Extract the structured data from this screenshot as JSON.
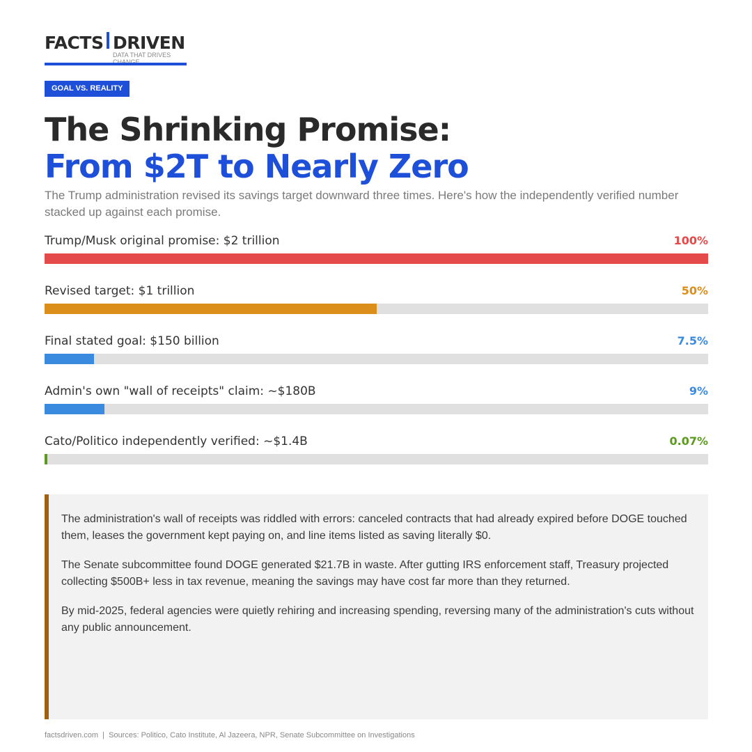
{
  "brand": {
    "word1": "FACTS",
    "word2": "DRIVEN",
    "tagline": "DATA THAT DRIVES CHANGE",
    "accent": "#1d4fd8"
  },
  "badge": "GOAL VS. REALITY",
  "title": {
    "line1": "The Shrinking Promise:",
    "line2": "From $2T to Nearly Zero"
  },
  "subtitle": "The Trump administration revised its savings target downward three times. Here's how the independently verified number stacked up against each promise.",
  "bars": [
    {
      "label": "Trump/Musk original promise: $2 trillion",
      "pct_text": "100%",
      "value": 100,
      "color": "#e44a4a"
    },
    {
      "label": "Revised target: $1 trillion",
      "pct_text": "50%",
      "value": 50,
      "color": "#dc8e1b"
    },
    {
      "label": "Final stated goal: $150 billion",
      "pct_text": "7.5%",
      "value": 7.5,
      "color": "#3a8ae0"
    },
    {
      "label": "Admin's own \"wall of receipts\" claim: ~$180B",
      "pct_text": "9%",
      "value": 9,
      "color": "#3a8ae0"
    },
    {
      "label": "Cato/Politico independently verified: ~$1.4B",
      "pct_text": "0.07%",
      "value": 0.07,
      "color": "#5a9a1e"
    }
  ],
  "callout": [
    "The administration's wall of receipts was riddled with errors: canceled contracts that had already expired before DOGE touched them, leases the government kept paying on, and line items listed as saving literally $0.",
    "The Senate subcommittee found DOGE generated $21.7B in waste. After gutting IRS enforcement staff, Treasury projected collecting $500B+ less in tax revenue, meaning the savings may have cost far more than they returned.",
    "By mid-2025, federal agencies were quietly rehiring and increasing spending, reversing many of the administration's cuts without any public announcement."
  ],
  "footer": "factsdriven.com  |  Sources: Politico, Cato Institute, Al Jazeera, NPR, Senate Subcommittee on Investigations"
}
